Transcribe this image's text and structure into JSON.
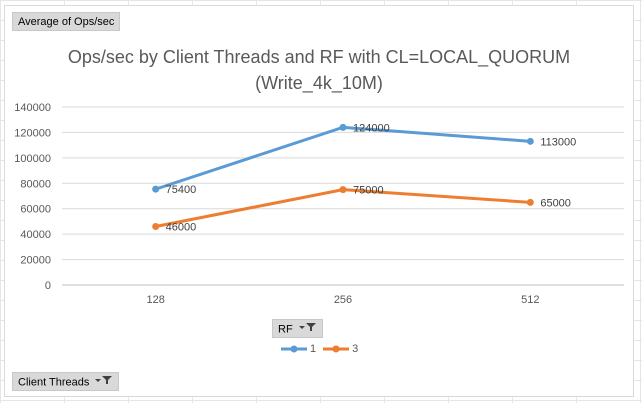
{
  "pivot": {
    "value_field": "Average of Ops/sec",
    "legend_field": "RF",
    "axis_field": "Client Threads"
  },
  "chart_data": {
    "type": "line",
    "title": "Ops/sec by Client Threads and RF with CL=LOCAL_QUORUM",
    "subtitle": "(Write_4k_10M)",
    "categories": [
      "128",
      "256",
      "512"
    ],
    "series": [
      {
        "name": "1",
        "values": [
          75400,
          124000,
          113000
        ],
        "color": "#5b9bd5"
      },
      {
        "name": "3",
        "values": [
          46000,
          75000,
          65000
        ],
        "color": "#ed7d31"
      }
    ],
    "y_ticks": [
      "0",
      "20000",
      "40000",
      "60000",
      "80000",
      "100000",
      "120000",
      "140000"
    ],
    "ylim": [
      0,
      140000
    ],
    "grid": true,
    "legend_position": "bottom",
    "data_labels": true,
    "xlabel": "",
    "ylabel": ""
  }
}
